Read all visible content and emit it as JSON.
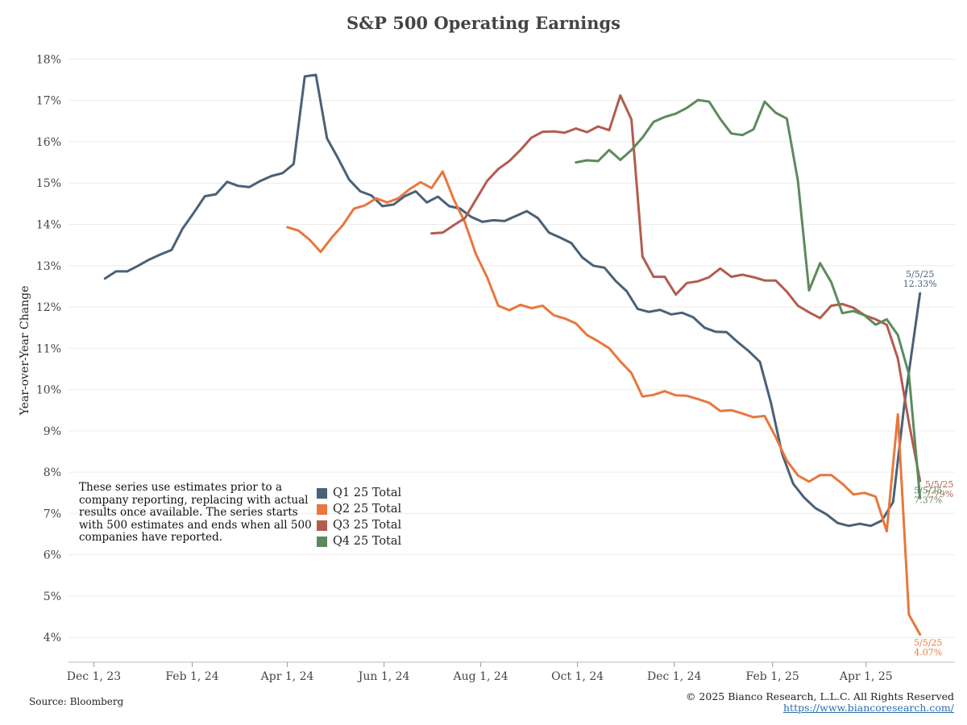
{
  "chart_data": {
    "type": "line",
    "title": "S&P 500 Operating Earnings",
    "ylabel": "Year-over-Year Change",
    "xlabel": "",
    "ylim": [
      3.4,
      18.3
    ],
    "yticks": [
      4,
      5,
      6,
      7,
      8,
      9,
      10,
      11,
      12,
      13,
      14,
      15,
      16,
      17,
      18
    ],
    "ytick_suffix": "%",
    "xlim": [
      "2023-11-15",
      "2025-05-27"
    ],
    "xticks": [
      {
        "date": "2023-12-01",
        "label": "Dec 1, 23"
      },
      {
        "date": "2024-02-01",
        "label": "Feb 1, 24"
      },
      {
        "date": "2024-04-01",
        "label": "Apr 1, 24"
      },
      {
        "date": "2024-06-01",
        "label": "Jun 1, 24"
      },
      {
        "date": "2024-08-01",
        "label": "Aug 1, 24"
      },
      {
        "date": "2024-10-01",
        "label": "Oct 1, 24"
      },
      {
        "date": "2024-12-01",
        "label": "Dec 1, 24"
      },
      {
        "date": "2025-02-01",
        "label": "Feb 1, 25"
      },
      {
        "date": "2025-04-01",
        "label": "Apr 1, 25"
      }
    ],
    "grid": true,
    "legend_position": "bottom-left",
    "series": [
      {
        "name": "Q1 25 Total",
        "color": "#4a6177",
        "end_label": {
          "date": "5/5/25",
          "value": "12.33%"
        },
        "points": [
          [
            "2023-12-08",
            12.69
          ],
          [
            "2023-12-15",
            12.86
          ],
          [
            "2023-12-22",
            12.86
          ],
          [
            "2023-12-29",
            13.0
          ],
          [
            "2024-01-05",
            13.15
          ],
          [
            "2024-01-12",
            13.27
          ],
          [
            "2024-01-19",
            13.38
          ],
          [
            "2024-01-26",
            13.9
          ],
          [
            "2024-02-02",
            14.28
          ],
          [
            "2024-02-09",
            14.68
          ],
          [
            "2024-02-16",
            14.73
          ],
          [
            "2024-02-23",
            15.03
          ],
          [
            "2024-03-01",
            14.93
          ],
          [
            "2024-03-08",
            14.9
          ],
          [
            "2024-03-15",
            15.05
          ],
          [
            "2024-03-22",
            15.17
          ],
          [
            "2024-03-29",
            15.24
          ],
          [
            "2024-04-05",
            15.46
          ],
          [
            "2024-04-12",
            17.58
          ],
          [
            "2024-04-19",
            17.62
          ],
          [
            "2024-04-26",
            16.08
          ],
          [
            "2024-05-03",
            15.6
          ],
          [
            "2024-05-10",
            15.08
          ],
          [
            "2024-05-17",
            14.8
          ],
          [
            "2024-05-24",
            14.7
          ],
          [
            "2024-05-31",
            14.44
          ],
          [
            "2024-06-07",
            14.48
          ],
          [
            "2024-06-14",
            14.68
          ],
          [
            "2024-06-21",
            14.8
          ],
          [
            "2024-06-28",
            14.53
          ],
          [
            "2024-07-05",
            14.67
          ],
          [
            "2024-07-12",
            14.44
          ],
          [
            "2024-07-19",
            14.38
          ],
          [
            "2024-07-26",
            14.18
          ],
          [
            "2024-08-02",
            14.06
          ],
          [
            "2024-08-09",
            14.1
          ],
          [
            "2024-08-16",
            14.08
          ],
          [
            "2024-08-23",
            14.2
          ],
          [
            "2024-08-30",
            14.32
          ],
          [
            "2024-09-06",
            14.15
          ],
          [
            "2024-09-13",
            13.8
          ],
          [
            "2024-09-20",
            13.68
          ],
          [
            "2024-09-27",
            13.55
          ],
          [
            "2024-10-04",
            13.2
          ],
          [
            "2024-10-11",
            13.0
          ],
          [
            "2024-10-18",
            12.95
          ],
          [
            "2024-10-25",
            12.63
          ],
          [
            "2024-11-01",
            12.38
          ],
          [
            "2024-11-08",
            11.95
          ],
          [
            "2024-11-15",
            11.88
          ],
          [
            "2024-11-22",
            11.93
          ],
          [
            "2024-11-29",
            11.82
          ],
          [
            "2024-12-06",
            11.86
          ],
          [
            "2024-12-13",
            11.75
          ],
          [
            "2024-12-20",
            11.5
          ],
          [
            "2024-12-27",
            11.4
          ],
          [
            "2025-01-03",
            11.39
          ],
          [
            "2025-01-10",
            11.15
          ],
          [
            "2025-01-17",
            10.93
          ],
          [
            "2025-01-24",
            10.67
          ],
          [
            "2025-01-31",
            9.68
          ],
          [
            "2025-02-07",
            8.45
          ],
          [
            "2025-02-14",
            7.72
          ],
          [
            "2025-02-21",
            7.38
          ],
          [
            "2025-02-28",
            7.13
          ],
          [
            "2025-03-07",
            6.98
          ],
          [
            "2025-03-14",
            6.77
          ],
          [
            "2025-03-21",
            6.7
          ],
          [
            "2025-03-28",
            6.75
          ],
          [
            "2025-04-04",
            6.7
          ],
          [
            "2025-04-11",
            6.83
          ],
          [
            "2025-04-18",
            7.28
          ],
          [
            "2025-04-25",
            9.6
          ],
          [
            "2025-05-05",
            12.33
          ]
        ]
      },
      {
        "name": "Q2 25 Total",
        "color": "#e8773d",
        "end_label": {
          "date": "5/5/25",
          "value": "4.07%"
        },
        "points": [
          [
            "2024-04-01",
            13.93
          ],
          [
            "2024-04-08",
            13.85
          ],
          [
            "2024-04-15",
            13.63
          ],
          [
            "2024-04-22",
            13.33
          ],
          [
            "2024-04-29",
            13.68
          ],
          [
            "2024-05-06",
            13.98
          ],
          [
            "2024-05-13",
            14.38
          ],
          [
            "2024-05-20",
            14.46
          ],
          [
            "2024-05-27",
            14.63
          ],
          [
            "2024-06-03",
            14.53
          ],
          [
            "2024-06-10",
            14.63
          ],
          [
            "2024-06-17",
            14.85
          ],
          [
            "2024-06-24",
            15.02
          ],
          [
            "2024-07-01",
            14.88
          ],
          [
            "2024-07-08",
            15.28
          ],
          [
            "2024-07-15",
            14.6
          ],
          [
            "2024-07-22",
            14.05
          ],
          [
            "2024-07-29",
            13.27
          ],
          [
            "2024-08-05",
            12.72
          ],
          [
            "2024-08-12",
            12.03
          ],
          [
            "2024-08-19",
            11.92
          ],
          [
            "2024-08-26",
            12.05
          ],
          [
            "2024-09-02",
            11.97
          ],
          [
            "2024-09-09",
            12.03
          ],
          [
            "2024-09-16",
            11.8
          ],
          [
            "2024-09-23",
            11.72
          ],
          [
            "2024-09-30",
            11.6
          ],
          [
            "2024-10-07",
            11.32
          ],
          [
            "2024-10-14",
            11.17
          ],
          [
            "2024-10-21",
            11.0
          ],
          [
            "2024-10-28",
            10.68
          ],
          [
            "2024-11-04",
            10.4
          ],
          [
            "2024-11-11",
            9.83
          ],
          [
            "2024-11-18",
            9.87
          ],
          [
            "2024-11-25",
            9.96
          ],
          [
            "2024-12-02",
            9.86
          ],
          [
            "2024-12-09",
            9.85
          ],
          [
            "2024-12-16",
            9.77
          ],
          [
            "2024-12-23",
            9.68
          ],
          [
            "2024-12-30",
            9.48
          ],
          [
            "2025-01-06",
            9.5
          ],
          [
            "2025-01-13",
            9.42
          ],
          [
            "2025-01-20",
            9.33
          ],
          [
            "2025-01-27",
            9.36
          ],
          [
            "2025-02-03",
            8.85
          ],
          [
            "2025-02-10",
            8.28
          ],
          [
            "2025-02-17",
            7.92
          ],
          [
            "2025-02-24",
            7.77
          ],
          [
            "2025-03-03",
            7.93
          ],
          [
            "2025-03-10",
            7.93
          ],
          [
            "2025-03-17",
            7.72
          ],
          [
            "2025-03-24",
            7.46
          ],
          [
            "2025-03-31",
            7.5
          ],
          [
            "2025-04-07",
            7.41
          ],
          [
            "2025-04-14",
            6.57
          ],
          [
            "2025-04-21",
            9.4
          ],
          [
            "2025-04-28",
            4.55
          ],
          [
            "2025-05-05",
            4.07
          ]
        ]
      },
      {
        "name": "Q3 25 Total",
        "color": "#b35c4e",
        "end_label": {
          "date": "5/5/25",
          "value": "7.79%"
        },
        "points": [
          [
            "2024-07-01",
            13.78
          ],
          [
            "2024-07-08",
            13.8
          ],
          [
            "2024-07-15",
            13.98
          ],
          [
            "2024-07-22",
            14.15
          ],
          [
            "2024-07-29",
            14.6
          ],
          [
            "2024-08-05",
            15.05
          ],
          [
            "2024-08-12",
            15.34
          ],
          [
            "2024-08-19",
            15.53
          ],
          [
            "2024-08-26",
            15.8
          ],
          [
            "2024-09-02",
            16.1
          ],
          [
            "2024-09-09",
            16.24
          ],
          [
            "2024-09-16",
            16.25
          ],
          [
            "2024-09-23",
            16.22
          ],
          [
            "2024-09-30",
            16.32
          ],
          [
            "2024-10-07",
            16.23
          ],
          [
            "2024-10-14",
            16.37
          ],
          [
            "2024-10-21",
            16.28
          ],
          [
            "2024-10-28",
            17.12
          ],
          [
            "2024-11-04",
            16.54
          ],
          [
            "2024-11-11",
            13.22
          ],
          [
            "2024-11-18",
            12.73
          ],
          [
            "2024-11-25",
            12.73
          ],
          [
            "2024-12-02",
            12.3
          ],
          [
            "2024-12-09",
            12.58
          ],
          [
            "2024-12-16",
            12.62
          ],
          [
            "2024-12-23",
            12.72
          ],
          [
            "2024-12-30",
            12.93
          ],
          [
            "2025-01-06",
            12.73
          ],
          [
            "2025-01-13",
            12.78
          ],
          [
            "2025-01-20",
            12.72
          ],
          [
            "2025-01-27",
            12.64
          ],
          [
            "2025-02-03",
            12.64
          ],
          [
            "2025-02-10",
            12.37
          ],
          [
            "2025-02-17",
            12.03
          ],
          [
            "2025-02-24",
            11.87
          ],
          [
            "2025-03-03",
            11.73
          ],
          [
            "2025-03-10",
            12.03
          ],
          [
            "2025-03-17",
            12.07
          ],
          [
            "2025-03-24",
            11.98
          ],
          [
            "2025-03-31",
            11.8
          ],
          [
            "2025-04-07",
            11.7
          ],
          [
            "2025-04-14",
            11.57
          ],
          [
            "2025-04-21",
            10.75
          ],
          [
            "2025-04-28",
            9.2
          ],
          [
            "2025-05-05",
            7.79
          ]
        ]
      },
      {
        "name": "Q4 25 Total",
        "color": "#5c8a5c",
        "end_label": {
          "date": "5/5/25",
          "value": "7.37%"
        },
        "points": [
          [
            "2024-09-30",
            15.5
          ],
          [
            "2024-10-07",
            15.55
          ],
          [
            "2024-10-14",
            15.53
          ],
          [
            "2024-10-21",
            15.8
          ],
          [
            "2024-10-28",
            15.56
          ],
          [
            "2024-11-04",
            15.8
          ],
          [
            "2024-11-11",
            16.1
          ],
          [
            "2024-11-18",
            16.48
          ],
          [
            "2024-11-25",
            16.6
          ],
          [
            "2024-12-02",
            16.68
          ],
          [
            "2024-12-09",
            16.82
          ],
          [
            "2024-12-16",
            17.01
          ],
          [
            "2024-12-23",
            16.97
          ],
          [
            "2024-12-30",
            16.55
          ],
          [
            "2025-01-06",
            16.2
          ],
          [
            "2025-01-13",
            16.16
          ],
          [
            "2025-01-20",
            16.3
          ],
          [
            "2025-01-27",
            16.97
          ],
          [
            "2025-02-03",
            16.7
          ],
          [
            "2025-02-10",
            16.56
          ],
          [
            "2025-02-17",
            15.05
          ],
          [
            "2025-02-24",
            12.4
          ],
          [
            "2025-03-03",
            13.06
          ],
          [
            "2025-03-10",
            12.6
          ],
          [
            "2025-03-17",
            11.85
          ],
          [
            "2025-03-24",
            11.9
          ],
          [
            "2025-03-31",
            11.8
          ],
          [
            "2025-04-07",
            11.57
          ],
          [
            "2025-04-14",
            11.7
          ],
          [
            "2025-04-21",
            11.32
          ],
          [
            "2025-04-28",
            10.37
          ],
          [
            "2025-05-05",
            7.37
          ]
        ]
      }
    ]
  },
  "note": "These series use estimates prior to a company reporting, replacing with actual results once available. The series starts with 500 estimates and ends when all 500 companies have reported.",
  "footer": {
    "source": "Source: Bloomberg",
    "copyright": "© 2025 Bianco Research, L.L.C. All Rights Reserved",
    "link": "https://www.biancoresearch.com/"
  }
}
